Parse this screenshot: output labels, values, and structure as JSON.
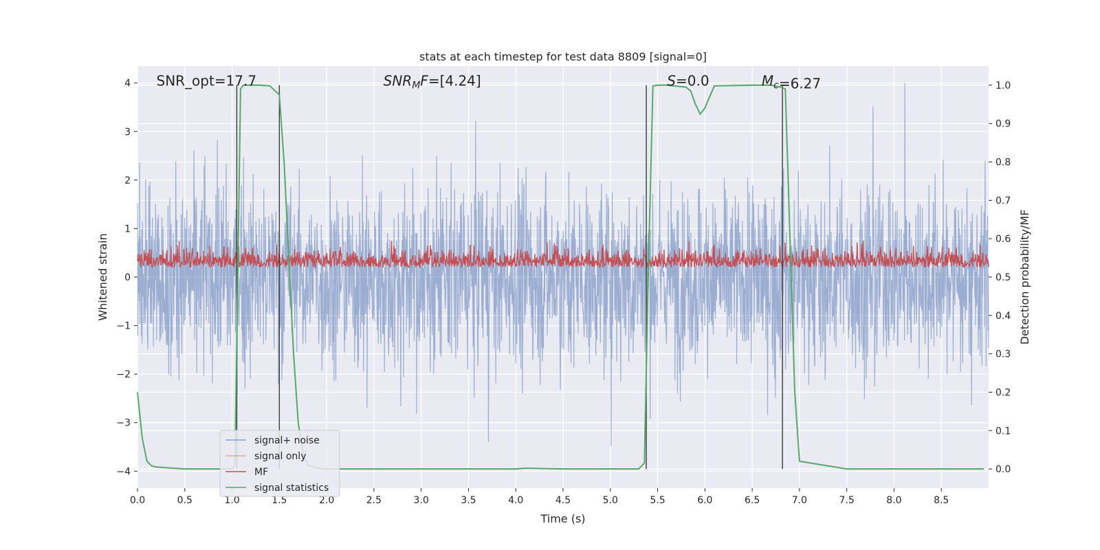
{
  "chart_data": {
    "type": "line",
    "title": "stats at each timestep for test data 8809 [signal=0]",
    "xlabel": "Time (s)",
    "ylabel": "Whitened strain",
    "ylabel_right": "Detection probability/MF",
    "xlim": [
      0.0,
      9.0
    ],
    "ylim": [
      -4.35,
      4.35
    ],
    "ylim_right": [
      -0.05,
      1.05
    ],
    "x_ticks": [
      "0.0",
      "0.5",
      "1.0",
      "1.5",
      "2.0",
      "2.5",
      "3.0",
      "3.5",
      "4.0",
      "4.5",
      "5.0",
      "5.5",
      "6.0",
      "6.5",
      "7.0",
      "7.5",
      "8.0",
      "8.5"
    ],
    "y_ticks": [
      "−4",
      "−3",
      "−2",
      "−1",
      "0",
      "1",
      "2",
      "3",
      "4"
    ],
    "y_ticks_right": [
      "0.0",
      "0.1",
      "0.2",
      "0.3",
      "0.4",
      "0.5",
      "0.6",
      "0.7",
      "0.8",
      "0.9",
      "1.0"
    ],
    "grid": true,
    "annotations": [
      {
        "id": "snr-opt",
        "prefix": "SNR_opt",
        "sub": "",
        "text": "=17.7",
        "x": 0.2,
        "y": 4.0,
        "italic": false
      },
      {
        "id": "snr-mf",
        "prefix": "SNR",
        "sub": "M",
        "suffix": "F",
        "text": "=[4.24]",
        "x": 2.6,
        "y": 4.0,
        "italic": true
      },
      {
        "id": "s-value",
        "prefix": "S",
        "sub": "",
        "text": "=0.0",
        "x": 5.6,
        "y": 4.0,
        "italic": true
      },
      {
        "id": "mc-value",
        "prefix": "M",
        "sub": "c",
        "text": "=6.27",
        "x": 6.6,
        "y": 4.0,
        "italic": true
      }
    ],
    "vlines": [
      1.05,
      1.5,
      5.38,
      6.82
    ],
    "series": [
      {
        "name": "signal+ noise",
        "color": "#4c72b0",
        "axis": "left",
        "kind": "noise",
        "range": [
          -4.0,
          4.0
        ]
      },
      {
        "name": "signal only",
        "color": "#dd8452",
        "axis": "left",
        "kind": "flat"
      },
      {
        "name": "MF",
        "color": "#c44e52",
        "axis": "right",
        "kind": "mf",
        "range": [
          0.495,
          0.62
        ]
      },
      {
        "name": "signal statistics",
        "color": "#55a868",
        "axis": "right",
        "kind": "stat",
        "x": [
          0.0,
          0.05,
          0.1,
          0.15,
          0.2,
          0.3,
          0.5,
          1.0,
          1.03,
          1.06,
          1.09,
          1.12,
          1.2,
          1.3,
          1.4,
          1.5,
          1.55,
          1.6,
          1.65,
          1.7,
          1.75,
          1.8,
          1.9,
          2.0,
          3.0,
          4.0,
          4.1,
          4.5,
          5.0,
          5.3,
          5.36,
          5.4,
          5.45,
          5.5,
          5.6,
          5.8,
          5.85,
          5.9,
          5.95,
          6.0,
          6.05,
          6.1,
          6.5,
          6.7,
          6.8,
          6.85,
          6.9,
          6.95,
          7.0,
          7.5,
          8.5,
          8.95
        ],
        "y": [
          0.2,
          0.08,
          0.02,
          0.008,
          0.005,
          0.003,
          0.0,
          0.0,
          0.01,
          0.5,
          0.99,
          1.0,
          1.0,
          1.0,
          0.998,
          0.975,
          0.8,
          0.55,
          0.3,
          0.12,
          0.04,
          0.01,
          0.002,
          0.0,
          0.0,
          0.0,
          0.002,
          0.0,
          0.0,
          0.0,
          0.015,
          0.5,
          0.998,
          1.0,
          1.0,
          0.995,
          0.985,
          0.95,
          0.925,
          0.94,
          0.97,
          0.998,
          1.0,
          1.0,
          0.995,
          0.99,
          0.6,
          0.2,
          0.02,
          0.0,
          0.0,
          0.0
        ]
      }
    ],
    "legend_position": "lower-left"
  }
}
